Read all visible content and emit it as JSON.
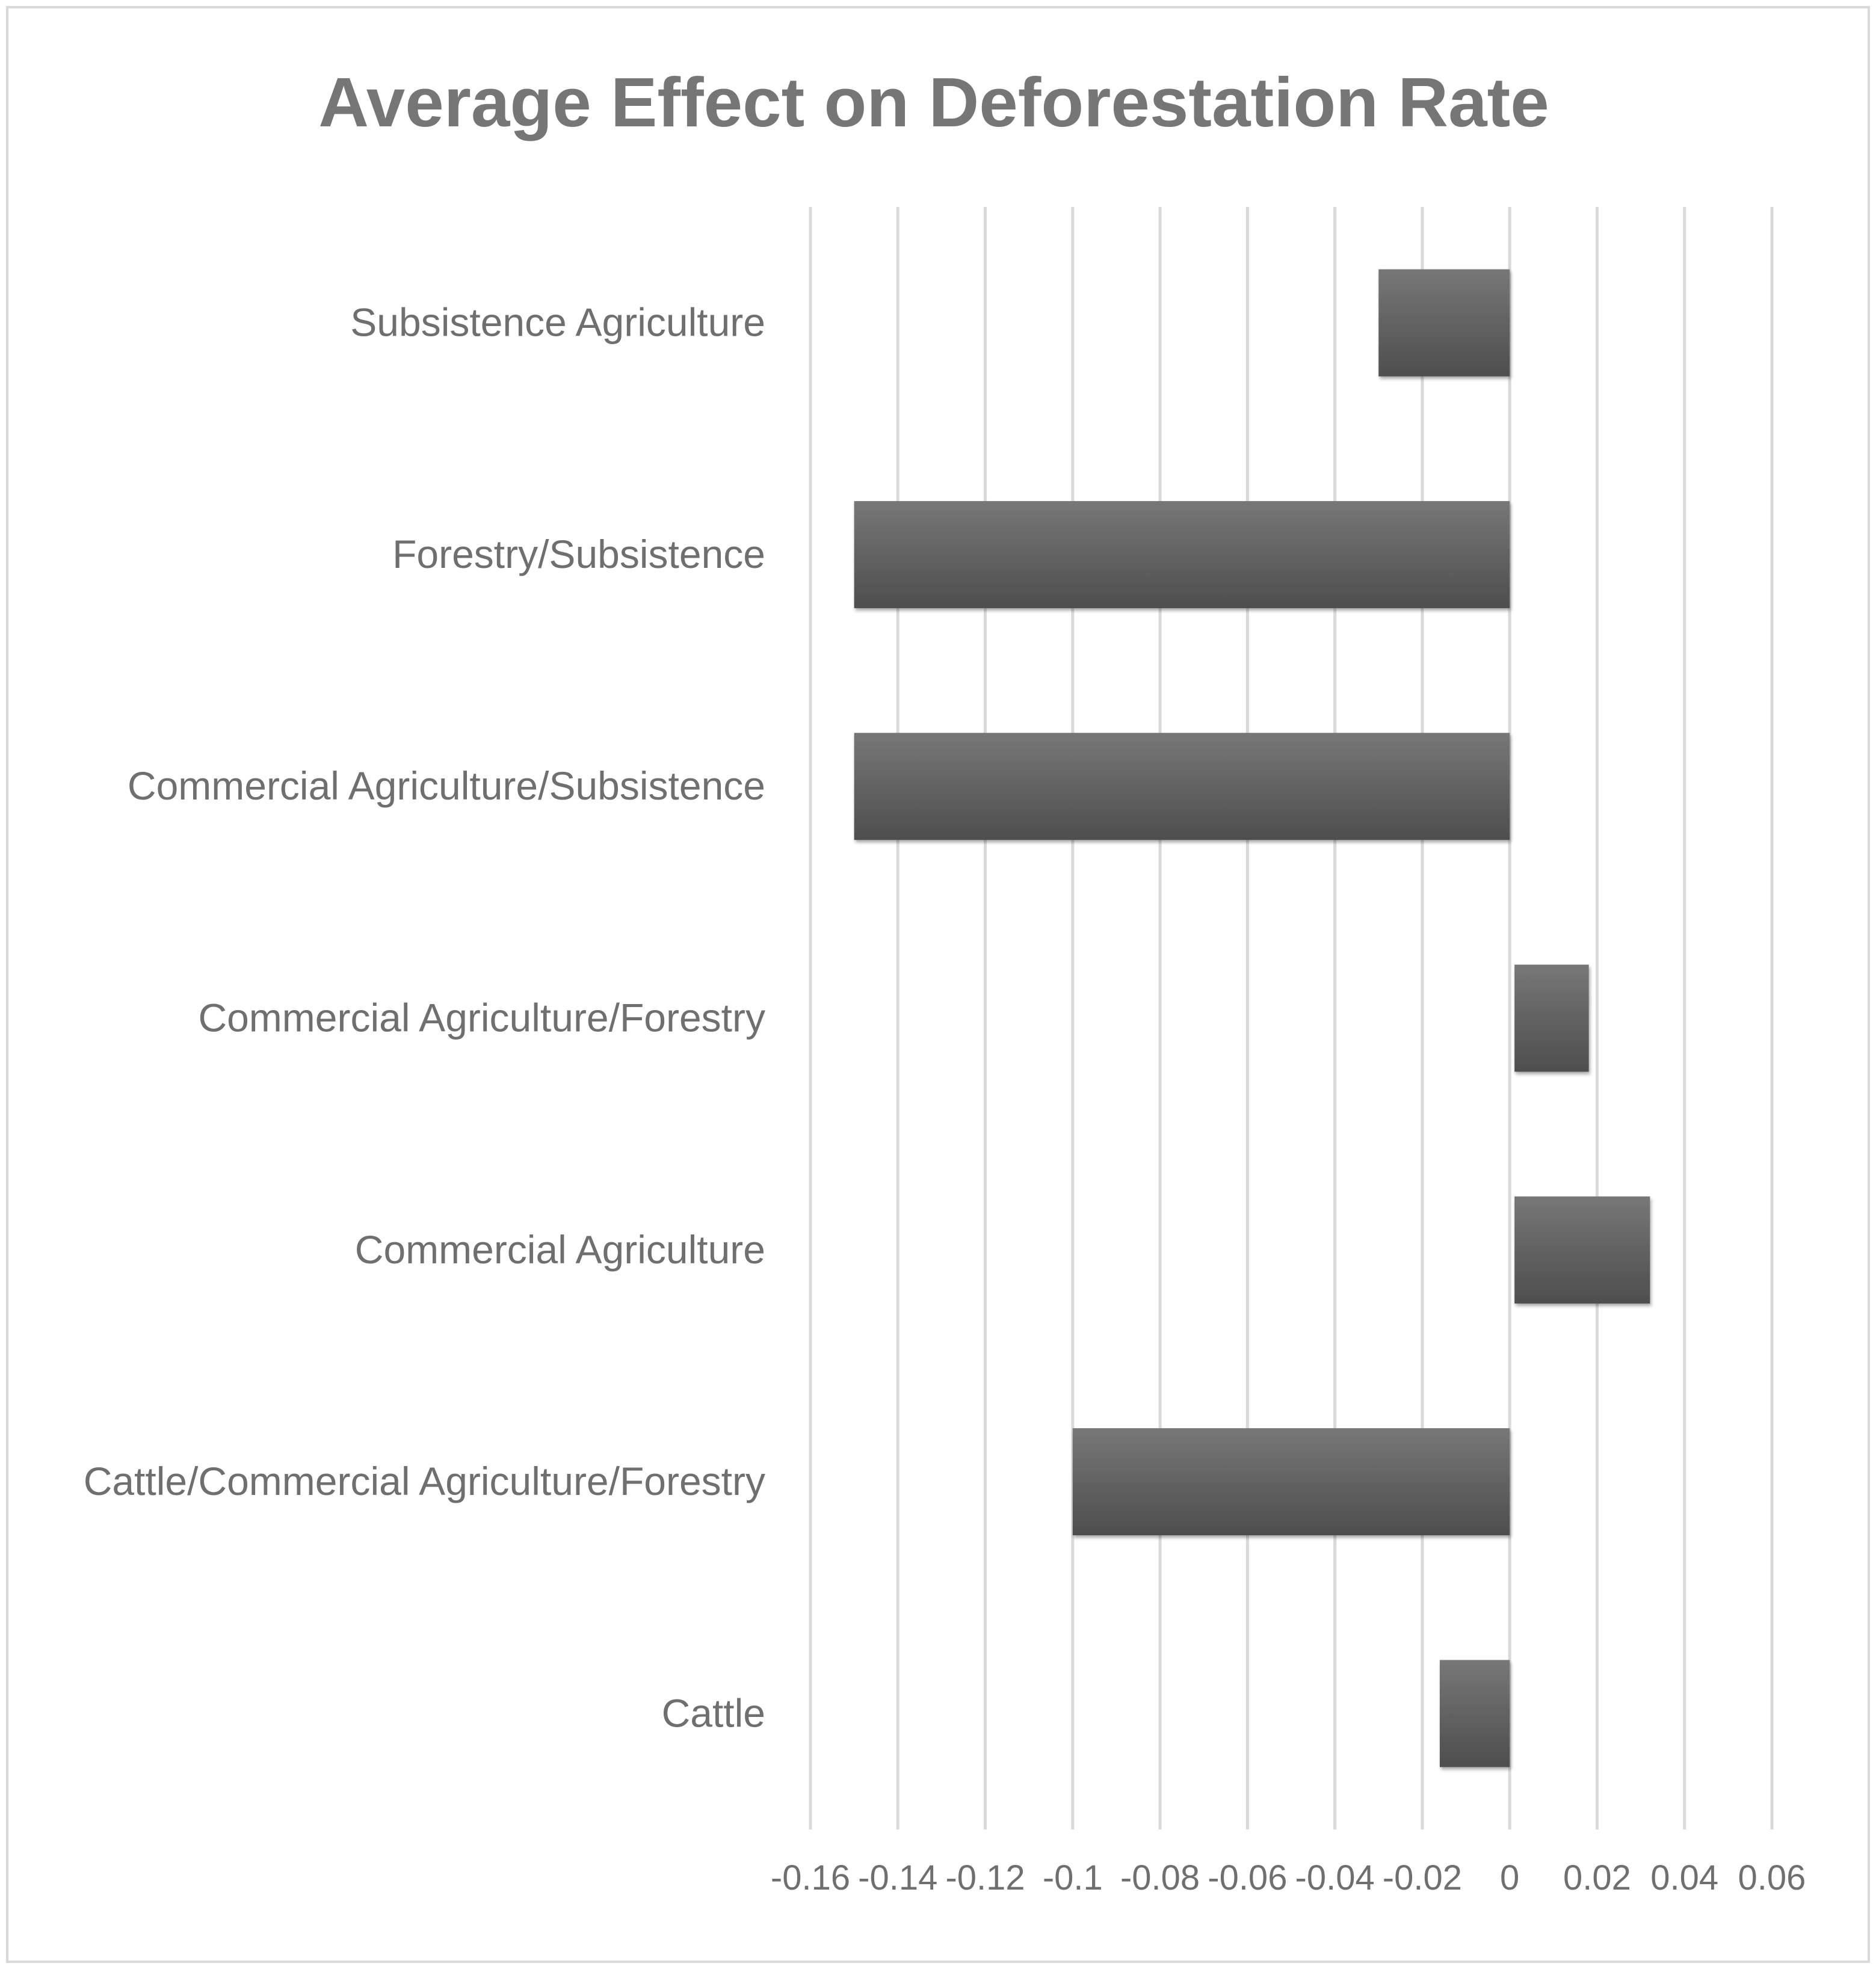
{
  "chart_data": {
    "type": "bar",
    "orientation": "horizontal",
    "title": "Average Effect on Deforestation Rate",
    "xlabel": "",
    "ylabel": "",
    "categories": [
      "Subsistence Agriculture",
      "Forestry/Subsistence",
      "Commercial Agriculture/Subsistence",
      "Commercial Agriculture/Forestry",
      "Commercial Agriculture",
      "Cattle/Commercial Agriculture/Forestry",
      "Cattle"
    ],
    "values": [
      -0.03,
      -0.15,
      -0.15,
      0.017,
      0.031,
      -0.1,
      -0.016
    ],
    "xlim": [
      -0.16,
      0.06
    ],
    "ticks": [
      -0.16,
      -0.14,
      -0.12,
      -0.1,
      -0.08,
      -0.06,
      -0.04,
      -0.02,
      0,
      0.02,
      0.04,
      0.06
    ],
    "tick_labels": [
      "-0.16",
      "-0.14",
      "-0.12",
      "-0.1",
      "-0.08",
      "-0.06",
      "-0.04",
      "-0.02",
      "0",
      "0.02",
      "0.04",
      "0.06"
    ],
    "grid": true,
    "legend": "none",
    "colors": {
      "bar_top": "#777777",
      "bar_bottom": "#4e4e4e",
      "grid": "#d9d9d9",
      "text": "#6f6f6f",
      "title": "#767676",
      "border": "#d9d9d9"
    }
  }
}
